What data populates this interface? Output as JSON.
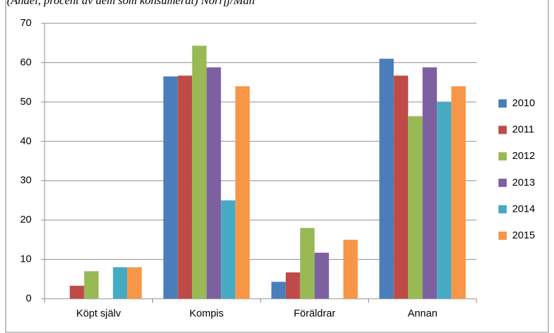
{
  "chart_data": {
    "type": "bar",
    "title": "(Andel, procent av dem som konsumerat) Norrfj/Män",
    "categories": [
      "Köpt själv",
      "Kompis",
      "Föräldrar",
      "Annan"
    ],
    "series": [
      {
        "name": "2010",
        "color": "#4a7ebb",
        "values": [
          null,
          56.5,
          4.3,
          61
        ]
      },
      {
        "name": "2011",
        "color": "#be4b48",
        "values": [
          3.3,
          56.7,
          6.7,
          56.7
        ]
      },
      {
        "name": "2012",
        "color": "#98b954",
        "values": [
          7,
          64.3,
          18,
          46.4
        ]
      },
      {
        "name": "2013",
        "color": "#7d60a0",
        "values": [
          null,
          58.8,
          11.7,
          58.8
        ]
      },
      {
        "name": "2014",
        "color": "#46aac5",
        "values": [
          8,
          25,
          null,
          50
        ]
      },
      {
        "name": "2015",
        "color": "#f79646",
        "values": [
          8,
          54,
          15,
          54
        ]
      }
    ],
    "ylim": [
      0,
      70
    ],
    "yticks": [
      0,
      10,
      20,
      30,
      40,
      50,
      60,
      70
    ],
    "grid": true,
    "legend": "right"
  }
}
